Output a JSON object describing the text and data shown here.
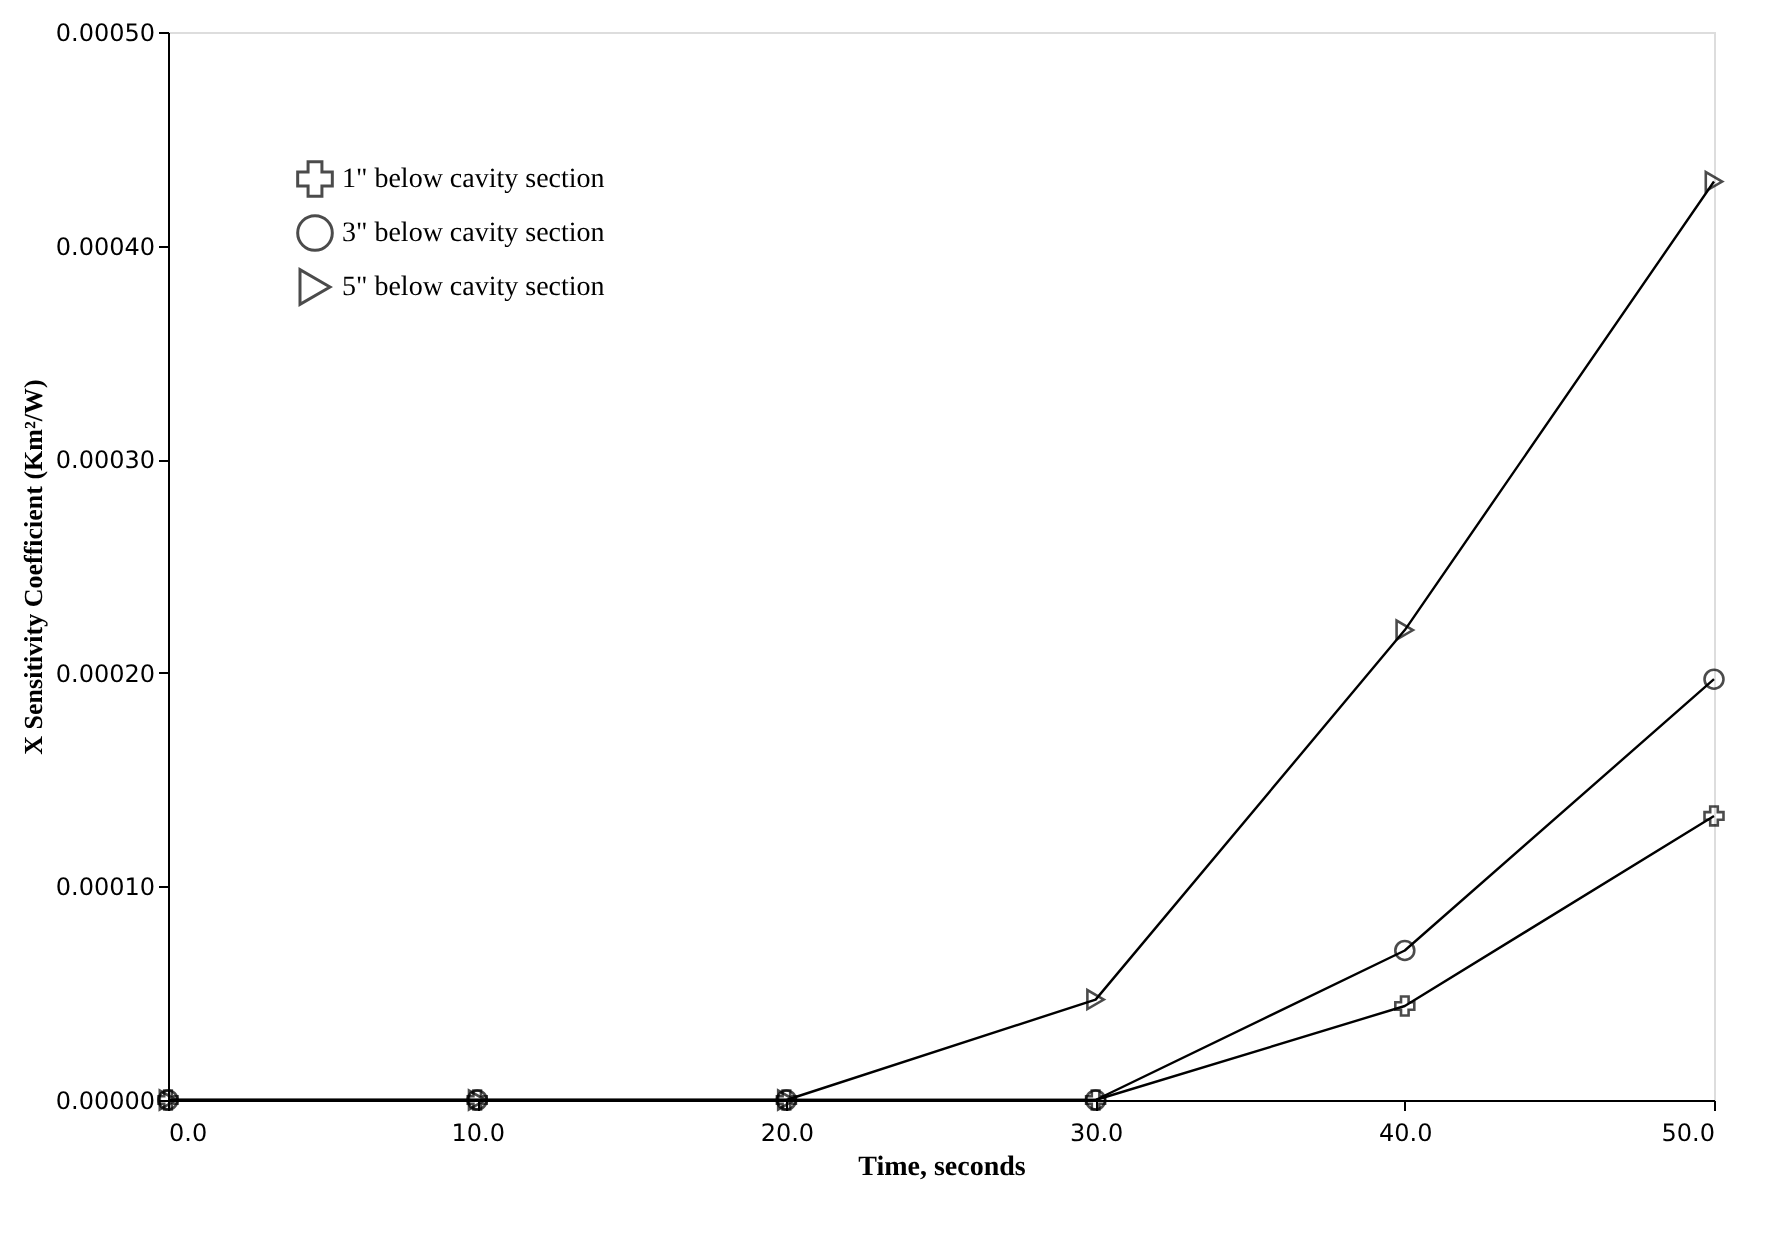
{
  "chart_data": {
    "type": "line",
    "xlabel": "Time, seconds",
    "ylabel": "X Sensitivity Coefficient  (Km²/W)",
    "x": [
      0,
      10,
      20,
      30,
      40,
      50
    ],
    "series": [
      {
        "name": "1\" below cavity section",
        "color": "#000000",
        "marker": "cross",
        "values": [
          0,
          0,
          0,
          0,
          4.4e-05,
          0.000133
        ]
      },
      {
        "name": "3\" below cavity section",
        "color": "#000000",
        "marker": "circle",
        "values": [
          0,
          0,
          0,
          0,
          7e-05,
          0.000197
        ]
      },
      {
        "name": "5\" below cavity section",
        "color": "#000000",
        "marker": "triangle",
        "values": [
          0,
          0,
          0,
          4.7e-05,
          0.00022,
          0.00043
        ]
      }
    ],
    "xlim": [
      0,
      50
    ],
    "xticks": [
      {
        "value": 0,
        "label": "0.0"
      },
      {
        "value": 10,
        "label": "10.0"
      },
      {
        "value": 20,
        "label": "20.0"
      },
      {
        "value": 30,
        "label": "30.0"
      },
      {
        "value": 40,
        "label": "40.0"
      },
      {
        "value": 50,
        "label": "50.0"
      }
    ],
    "ylim": [
      0,
      0.0005
    ],
    "yticks": [
      {
        "value": 0,
        "label": "0.00000"
      },
      {
        "value": 0.0001,
        "label": "0.00010"
      },
      {
        "value": 0.0002,
        "label": "0.00020"
      },
      {
        "value": 0.0003,
        "label": "0.00030"
      },
      {
        "value": 0.0004,
        "label": "0.00040"
      },
      {
        "value": 0.0005,
        "label": "0.00050"
      }
    ],
    "legend": "top left",
    "grid": false,
    "line_style": "solid"
  }
}
